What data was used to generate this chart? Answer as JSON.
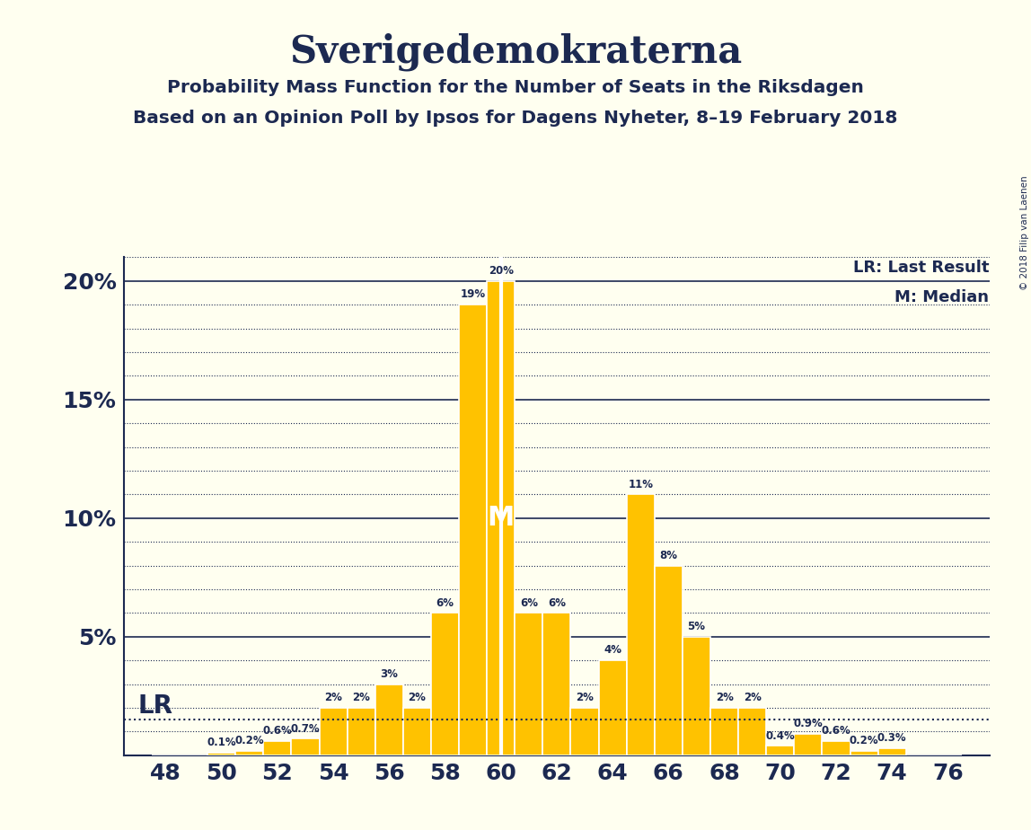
{
  "title": "Sverigedemokraterna",
  "subtitle1": "Probability Mass Function for the Number of Seats in the Riksdagen",
  "subtitle2": "Based on an Opinion Poll by Ipsos for Dagens Nyheter, 8–19 February 2018",
  "copyright": "© 2018 Filip van Laenen",
  "seats": [
    48,
    49,
    50,
    51,
    52,
    53,
    54,
    55,
    56,
    57,
    58,
    59,
    60,
    61,
    62,
    63,
    64,
    65,
    66,
    67,
    68,
    69,
    70,
    71,
    72,
    73,
    74,
    75,
    76
  ],
  "probabilities": [
    0.0,
    0.0,
    0.1,
    0.2,
    0.6,
    0.7,
    2.0,
    2.0,
    3.0,
    2.0,
    6.0,
    19.0,
    20.0,
    6.0,
    6.0,
    2.0,
    4.0,
    11.0,
    8.0,
    5.0,
    2.0,
    2.0,
    0.4,
    0.9,
    0.6,
    0.2,
    0.3,
    0.0,
    0.0
  ],
  "bar_color": "#FFC200",
  "bar_edge_color": "#FFFFFF",
  "background_color": "#FFFFF0",
  "text_color": "#1C2951",
  "grid_color": "#1C2951",
  "lr_seat": 49,
  "lr_label": "LR",
  "median_seat": 60,
  "median_label": "M",
  "median_line_color": "#FFFFFF",
  "ylim_max": 21,
  "ytick_major": [
    0,
    5,
    10,
    15,
    20
  ],
  "ytick_minor_step": 1,
  "legend_lr": "LR: Last Result",
  "legend_m": "M: Median",
  "xlim_min": 46.5,
  "xlim_max": 77.5
}
